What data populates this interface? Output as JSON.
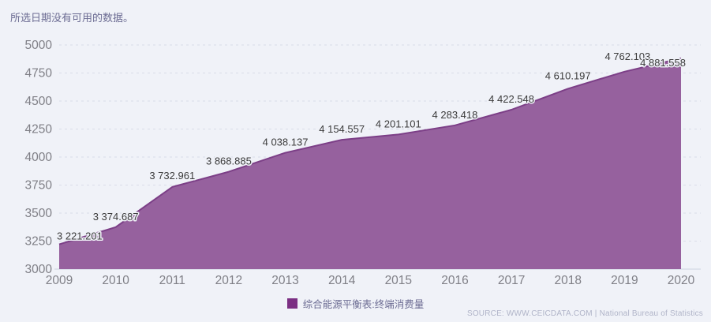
{
  "notice": "所选日期没有可用的数据。",
  "legend": {
    "series_label": "综合能源平衡表:终端消费量"
  },
  "source": "SOURCE: WWW.CEICDATA.COM | National Bureau of Statistics",
  "colors": {
    "background": "#f0f2f8",
    "area_fill": "#96619e",
    "area_line": "#7c3f87",
    "legend_swatch": "#7b2f83",
    "grid_line": "#d9dce8",
    "axis_line": "#cdd1df",
    "axis_text": "#7f7f86",
    "data_label_text": "#3b3b3b",
    "notice_text": "#6b6b92",
    "source_text": "#b0b4c8"
  },
  "chart_data": {
    "type": "area",
    "title": "",
    "xlabel": "",
    "ylabel": "",
    "categories": [
      "2009",
      "2010",
      "2011",
      "2012",
      "2013",
      "2014",
      "2015",
      "2016",
      "2017",
      "2018",
      "2019",
      "2020"
    ],
    "series": [
      {
        "name": "综合能源平衡表:终端消费量",
        "values": [
          3221.201,
          3374.687,
          3732.961,
          3868.885,
          4038.137,
          4154.557,
          4201.101,
          4283.418,
          4422.548,
          4610.197,
          4762.103,
          4881.558
        ],
        "point_labels": [
          "3 221.201",
          "3 374.687",
          "3 732.961",
          "3 868.885",
          "4 038.137",
          "4 154.557",
          "4 201.101",
          "4 283.418",
          "4 422.548",
          "4 610.197",
          "4 762.103",
          "4 881.558"
        ]
      }
    ],
    "ylim": [
      3000,
      5000
    ],
    "y_tick_step": 250,
    "y_tick_labels": [
      "3000",
      "3250",
      "3500",
      "3750",
      "4000",
      "4250",
      "4500",
      "4750",
      "5000"
    ],
    "grid": "horizontal-dashed",
    "legend_position": "bottom"
  }
}
